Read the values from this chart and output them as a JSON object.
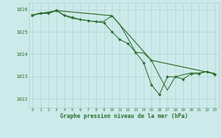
{
  "background_color": "#cceaea",
  "plot_bg_color": "#cceaea",
  "grid_color": "#aacccc",
  "line_color": "#2d6e2d",
  "marker_color": "#2d6e2d",
  "xlabel": "Graphe pression niveau de la mer (hPa)",
  "xlabel_color": "#2d6e2d",
  "xlim": [
    -0.5,
    23.5
  ],
  "ylim": [
    1021.6,
    1026.3
  ],
  "yticks": [
    1022,
    1023,
    1024,
    1025,
    1026
  ],
  "xticks": [
    0,
    1,
    2,
    3,
    4,
    5,
    6,
    7,
    8,
    9,
    10,
    11,
    12,
    13,
    14,
    15,
    16,
    17,
    18,
    19,
    20,
    21,
    22,
    23
  ],
  "series1": {
    "x": [
      0,
      1,
      2,
      3,
      4,
      5,
      6,
      7,
      8,
      9,
      10,
      11,
      12,
      13,
      14,
      15,
      16,
      17,
      18,
      19,
      20,
      21,
      22,
      23
    ],
    "y": [
      1025.75,
      1025.82,
      1025.82,
      1025.95,
      1025.72,
      1025.6,
      1025.55,
      1025.5,
      1025.45,
      1025.47,
      1025.72,
      1025.32,
      1024.72,
      1024.08,
      1024.05,
      1023.72,
      1023.02,
      1022.38,
      1022.98,
      1023.08,
      1023.15,
      1023.15,
      1023.22,
      1023.12
    ]
  },
  "series2": {
    "x": [
      0,
      1,
      2,
      3,
      4,
      5,
      6,
      7,
      8,
      9,
      10,
      11,
      12,
      13,
      14,
      15,
      16,
      17,
      18,
      19,
      20,
      21,
      22,
      23
    ],
    "y": [
      1025.75,
      1025.85,
      1025.85,
      1025.95,
      1025.75,
      1025.65,
      1025.55,
      1025.5,
      1025.45,
      1025.4,
      1025.0,
      1024.65,
      1024.48,
      1024.08,
      1023.62,
      1022.62,
      1022.18,
      1022.98,
      1022.98,
      1022.88,
      1023.12,
      1023.12,
      1023.22,
      1023.08
    ]
  },
  "series3": {
    "x": [
      0,
      3,
      10,
      15,
      23
    ],
    "y": [
      1025.75,
      1025.95,
      1025.72,
      1023.72,
      1023.12
    ]
  }
}
